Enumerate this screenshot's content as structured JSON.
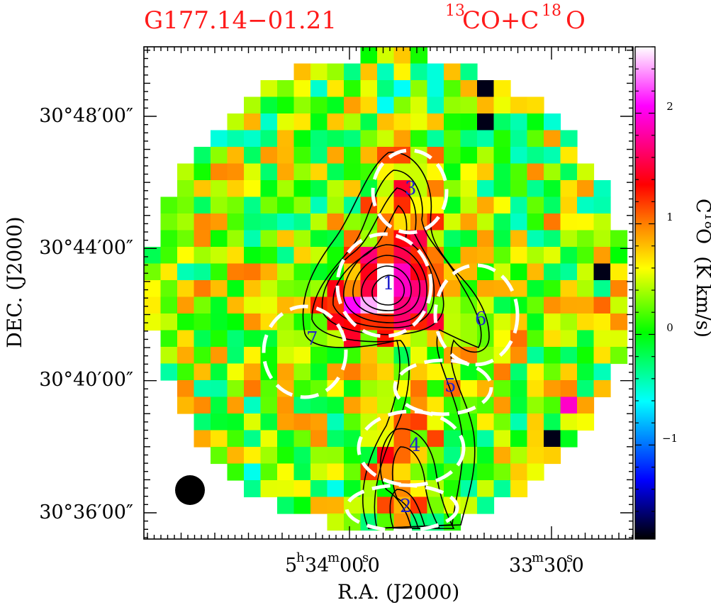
{
  "title": {
    "source": "G177.14−01.21",
    "lines_prefix": "13",
    "lines_co": "CO+C",
    "lines_sup2": "18",
    "lines_o": "O"
  },
  "chart_data": {
    "type": "heatmap",
    "title": "G177.14−01.21   13CO+C18O",
    "xlabel": "R.A. (J2000)",
    "ylabel": "DEC. (J2000)",
    "x_ticks": [
      {
        "h": "5",
        "m": "34",
        "s": "00",
        "frac": ".0"
      },
      {
        "h": "",
        "m": "33",
        "s": "30",
        "frac": ".0"
      }
    ],
    "y_ticks": [
      "30°48′00″",
      "30°44′00″",
      "30°40′00″",
      "30°36′00″"
    ],
    "y_tick_values_arcmin": [
      48,
      44,
      40,
      36
    ],
    "colorbar": {
      "label_prefix": "C",
      "label_sup": "18",
      "label_suffix": "O  (K km/s)",
      "range": [
        -1.85,
        2.6
      ],
      "ticks": [
        "2",
        "1",
        "0",
        "−1"
      ],
      "tick_values": [
        2,
        1,
        0,
        -1
      ],
      "colormap": [
        "#000000",
        "#0000ff",
        "#00ffff",
        "#00ff00",
        "#ffff00",
        "#ff8000",
        "#ff0000",
        "#ff00ff",
        "#ffffff"
      ]
    },
    "cores": [
      {
        "id": "1"
      },
      {
        "id": "2"
      },
      {
        "id": "3"
      },
      {
        "id": "4"
      },
      {
        "id": "5"
      },
      {
        "id": "6"
      },
      {
        "id": "7"
      }
    ],
    "contours": "13CO integrated intensity",
    "beam": "filled circle, lower-left"
  }
}
